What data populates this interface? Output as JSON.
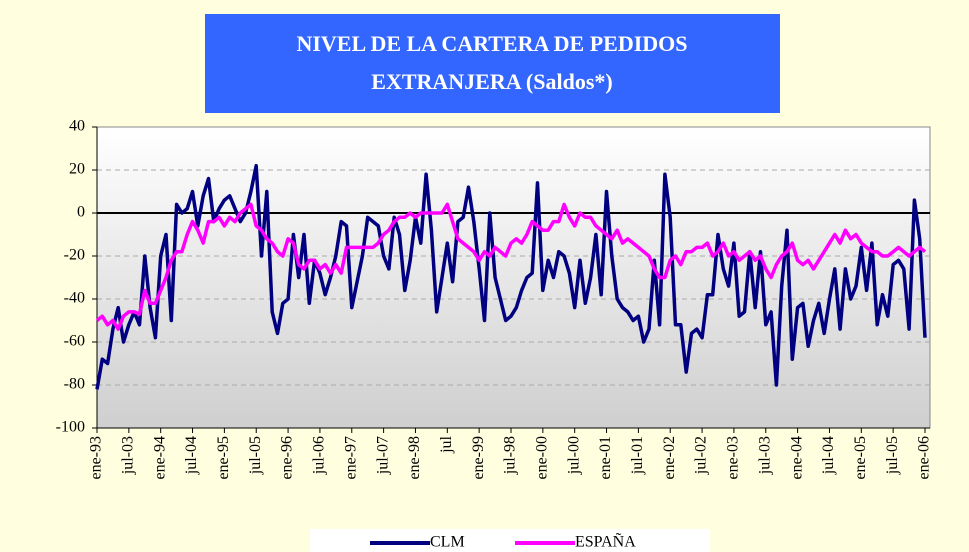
{
  "chart_data": {
    "type": "line",
    "title": [
      "NIVEL DE LA CARTERA DE PEDIDOS",
      "EXTRANJERA (Saldos*)"
    ],
    "categories": [
      "ene-93",
      null,
      null,
      null,
      null,
      null,
      "jul-03",
      null,
      null,
      null,
      null,
      null,
      "ene-94",
      null,
      null,
      null,
      null,
      null,
      "jul-04",
      null,
      null,
      null,
      null,
      null,
      "ene-95",
      null,
      null,
      null,
      null,
      null,
      "jul-05",
      null,
      null,
      null,
      null,
      null,
      "ene-96",
      null,
      null,
      null,
      null,
      null,
      "jul-06",
      null,
      null,
      null,
      null,
      null,
      "ene-97",
      null,
      null,
      null,
      null,
      null,
      "jul-07",
      null,
      null,
      null,
      null,
      null,
      "ene-98",
      null,
      null,
      null,
      null,
      null,
      "jul",
      null,
      null,
      null,
      null,
      null,
      "ene-99",
      null,
      null,
      null,
      null,
      null,
      "jul-98",
      null,
      null,
      null,
      null,
      null,
      "ene-00",
      null,
      null,
      null,
      null,
      null,
      "jul-00",
      null,
      null,
      null,
      null,
      null,
      "ene-01",
      null,
      null,
      null,
      null,
      null,
      "jul-01",
      null,
      null,
      null,
      null,
      null,
      "ene-02",
      null,
      null,
      null,
      null,
      null,
      "jul-02",
      null,
      null,
      null,
      null,
      null,
      "ene-03",
      null,
      null,
      null,
      null,
      null,
      "jul-03",
      null,
      null,
      null,
      null,
      null,
      "ene-04",
      null,
      null,
      null,
      null,
      null,
      "jul-04",
      null,
      null,
      null,
      null,
      null,
      "ene-05",
      null,
      null,
      null,
      null,
      null,
      "jul-05",
      null,
      null,
      null,
      null,
      null,
      "ene-06"
    ],
    "series": [
      {
        "name": "CLM",
        "color": "#000080",
        "values": [
          -82,
          -68,
          -70,
          -54,
          -44,
          -60,
          -52,
          -46,
          -52,
          -20,
          -44,
          -58,
          -20,
          -10,
          -50,
          4,
          0,
          2,
          10,
          -6,
          8,
          16,
          -4,
          2,
          6,
          8,
          2,
          -4,
          0,
          10,
          22,
          -20,
          10,
          -46,
          -56,
          -42,
          -40,
          -10,
          -30,
          -10,
          -42,
          -22,
          -28,
          -38,
          -30,
          -20,
          -4,
          -6,
          -44,
          -32,
          -20,
          -2,
          -4,
          -6,
          -20,
          -26,
          -2,
          -10,
          -36,
          -22,
          -2,
          -14,
          18,
          -8,
          -46,
          -30,
          -14,
          -32,
          -4,
          -2,
          12,
          -4,
          -26,
          -50,
          0,
          -30,
          -40,
          -50,
          -48,
          -44,
          -36,
          -30,
          -28,
          14,
          -36,
          -22,
          -30,
          -18,
          -20,
          -28,
          -44,
          -22,
          -42,
          -30,
          -10,
          -38,
          10,
          -20,
          -40,
          -44,
          -46,
          -50,
          -48,
          -60,
          -54,
          -22,
          -52,
          18,
          -2,
          -52,
          -52,
          -74,
          -56,
          -54,
          -58,
          -38,
          -38,
          -10,
          -26,
          -34,
          -14,
          -48,
          -46,
          -18,
          -44,
          -18,
          -52,
          -46,
          -80,
          -34,
          -8,
          -68,
          -44,
          -42,
          -62,
          -50,
          -42,
          -56,
          -40,
          -26,
          -54,
          -26,
          -40,
          -34,
          -16,
          -36,
          -14,
          -52,
          -38,
          -48,
          -24,
          -22,
          -26,
          -54,
          6,
          -12,
          -58
        ]
      },
      {
        "name": "ESPAÑA",
        "color": "#ff00ff",
        "values": [
          -50,
          -48,
          -52,
          -50,
          -54,
          -48,
          -46,
          -46,
          -47,
          -36,
          -42,
          -42,
          -36,
          -30,
          -22,
          -18,
          -18,
          -10,
          -4,
          -8,
          -14,
          -4,
          -4,
          -2,
          -6,
          -2,
          -4,
          0,
          2,
          4,
          -6,
          -8,
          -12,
          -14,
          -18,
          -20,
          -12,
          -14,
          -24,
          -26,
          -22,
          -22,
          -26,
          -24,
          -28,
          -24,
          -28,
          -16,
          -16,
          -16,
          -16,
          -16,
          -16,
          -14,
          -10,
          -8,
          -4,
          -2,
          -2,
          0,
          -2,
          0,
          0,
          0,
          0,
          0,
          4,
          -4,
          -12,
          -14,
          -16,
          -18,
          -22,
          -18,
          -20,
          -16,
          -18,
          -20,
          -14,
          -12,
          -14,
          -10,
          -4,
          -6,
          -8,
          -8,
          -4,
          -4,
          4,
          -2,
          -6,
          0,
          -2,
          -2,
          -6,
          -8,
          -10,
          -12,
          -8,
          -14,
          -12,
          -14,
          -16,
          -18,
          -20,
          -26,
          -30,
          -30,
          -22,
          -20,
          -24,
          -18,
          -18,
          -16,
          -16,
          -14,
          -20,
          -18,
          -14,
          -20,
          -18,
          -22,
          -20,
          -18,
          -22,
          -20,
          -26,
          -30,
          -24,
          -20,
          -18,
          -14,
          -22,
          -24,
          -22,
          -26,
          -22,
          -18,
          -14,
          -10,
          -14,
          -8,
          -12,
          -10,
          -14,
          -16,
          -18,
          -18,
          -20,
          -20,
          -18,
          -16,
          -18,
          -20,
          -18,
          -16,
          -18
        ]
      }
    ],
    "ylim": [
      -100,
      40
    ],
    "yticks": [
      -100,
      -80,
      -60,
      -40,
      -20,
      0,
      20,
      40
    ],
    "grid": true
  }
}
